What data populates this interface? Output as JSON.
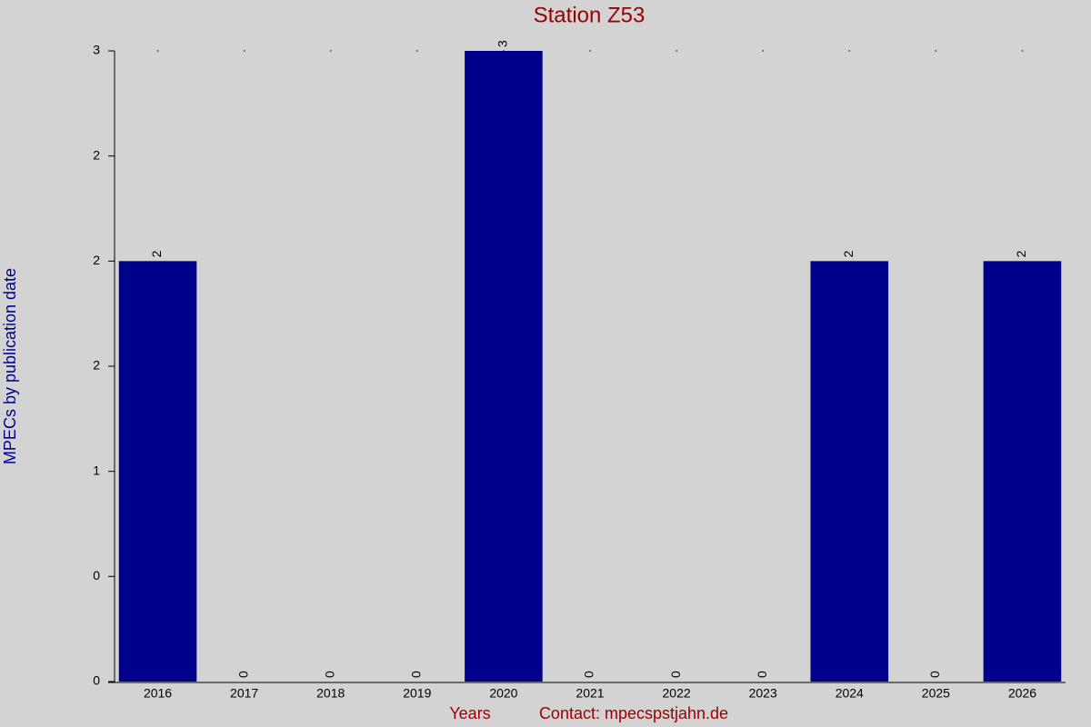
{
  "chart_data": {
    "type": "bar",
    "title": "Station Z53",
    "x_label": "Years",
    "y_label": "MPECs by publication date",
    "note": "Contact: mpecspstjahn.de",
    "categories": [
      "2016",
      "2017",
      "2018",
      "2019",
      "2020",
      "2021",
      "2022",
      "2023",
      "2024",
      "2025",
      "2026"
    ],
    "values": [
      2,
      0,
      0,
      0,
      3,
      0,
      0,
      0,
      2,
      0,
      2
    ],
    "color": "#00008b",
    "ylim": [
      0,
      3
    ],
    "yticks": [
      0,
      {
        "value": 0.5,
        "label": "0"
      },
      1,
      {
        "value": 1.5,
        "label": "2"
      },
      2,
      {
        "value": 2.5,
        "label": "2"
      },
      3
    ],
    "grid": false
  }
}
